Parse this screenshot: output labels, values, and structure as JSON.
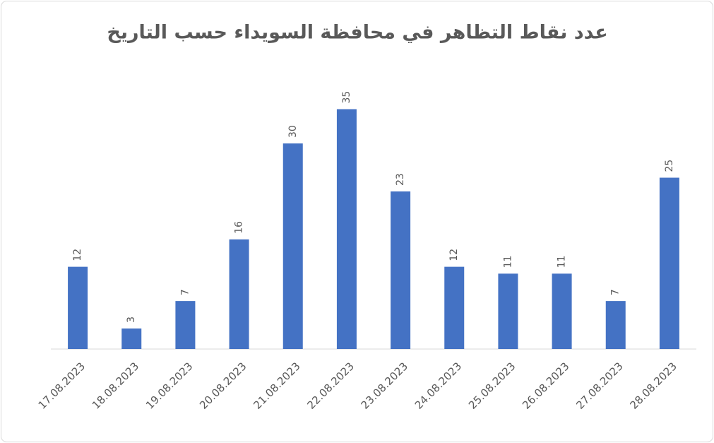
{
  "chart_data": {
    "type": "bar",
    "title": "عدد نقاط التظاهر في محافظة السويداء حسب التاريخ",
    "categories": [
      "17.08.2023",
      "18.08.2023",
      "19.08.2023",
      "20.08.2023",
      "21.08.2023",
      "22.08.2023",
      "23.08.2023",
      "24.08.2023",
      "25.08.2023",
      "26.08.2023",
      "27.08.2023",
      "28.08.2023"
    ],
    "values": [
      12,
      3,
      7,
      16,
      30,
      35,
      23,
      12,
      11,
      11,
      7,
      25
    ],
    "color": "#4472c4",
    "ylim": [
      0,
      40
    ]
  }
}
